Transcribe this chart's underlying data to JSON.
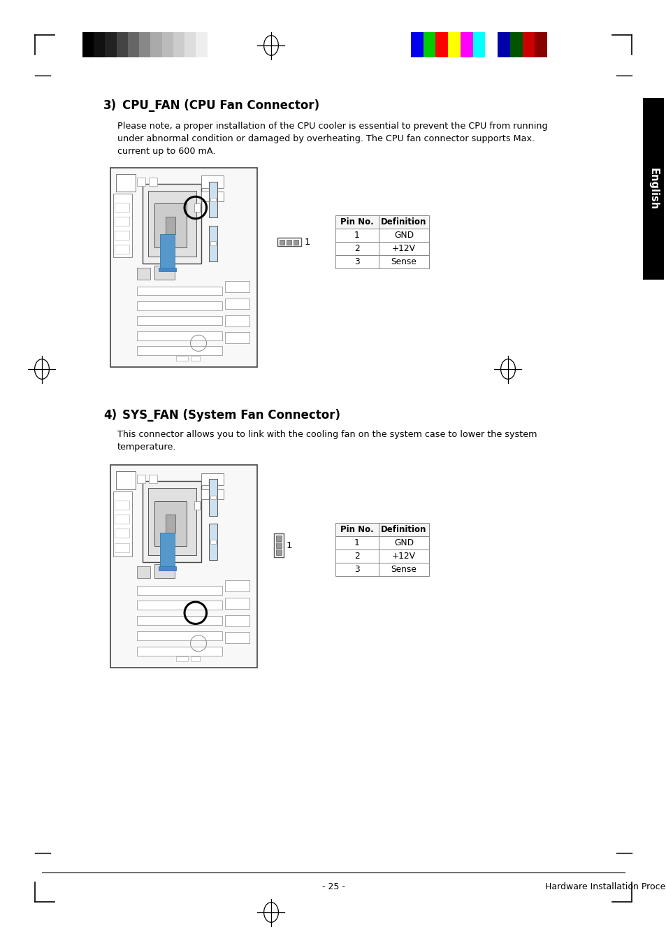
{
  "page_bg": "#ffffff",
  "header_gray_colors": [
    "#000000",
    "#111111",
    "#222222",
    "#444444",
    "#666666",
    "#888888",
    "#aaaaaa",
    "#bbbbbb",
    "#cccccc",
    "#dddddd",
    "#eeeeee",
    "#ffffff"
  ],
  "header_color_bars": [
    "#0000ee",
    "#00cc00",
    "#ff0000",
    "#ffff00",
    "#ff00ff",
    "#00ffff",
    "#ffffff",
    "#0000aa",
    "#005500",
    "#cc0000",
    "#880000"
  ],
  "section3_title_num": "3)",
  "section3_title_text": "CPU_FAN (CPU Fan Connector)",
  "section3_body1": "Please note, a proper installation of the CPU cooler is essential to prevent the CPU from running",
  "section3_body2": "under abnormal condition or damaged by overheating. The CPU fan connector supports Max.",
  "section3_body3": "current up to 600 mA.",
  "section4_title_num": "4)",
  "section4_title_text": "SYS_FAN (System Fan Connector)",
  "section4_body1": "This connector allows you to link with the cooling fan on the system case to lower the system",
  "section4_body2": "temperature.",
  "table_headers": [
    "Pin No.",
    "Definition"
  ],
  "table_rows": [
    [
      "1",
      "GND"
    ],
    [
      "2",
      "+12V"
    ],
    [
      "3",
      "Sense"
    ]
  ],
  "connector_label": "1",
  "sidebar_text": "English",
  "footer_text": "- 25 -",
  "footer_right": "Hardware Installation Process"
}
